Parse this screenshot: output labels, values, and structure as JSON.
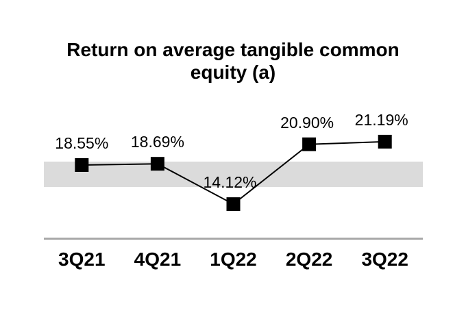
{
  "chart_data": {
    "type": "line",
    "title": "Return on average tangible common equity (a)",
    "categories": [
      "3Q21",
      "4Q21",
      "1Q22",
      "2Q22",
      "3Q22"
    ],
    "series": [
      {
        "name": "Return on average tangible common equity",
        "values": [
          18.55,
          18.69,
          14.12,
          20.9,
          21.19
        ]
      }
    ],
    "data_labels": [
      "18.55%",
      "18.69%",
      "14.12%",
      "20.90%",
      "21.19%"
    ],
    "xlabel": "",
    "ylabel": "",
    "legend_position": "none",
    "grid": false,
    "marker_shape": "square",
    "series_color": "#000000",
    "marker_color": "#000000",
    "text_color": "#000000",
    "axis_line_color": "#a9a9a9",
    "highlight_band": {
      "y_from": 16.0,
      "y_to": 18.9,
      "color": "#dbdbdb"
    },
    "ylim": [
      10.5,
      24.5
    ],
    "label_dx": [
      0,
      0,
      -5,
      -3,
      -5
    ]
  }
}
